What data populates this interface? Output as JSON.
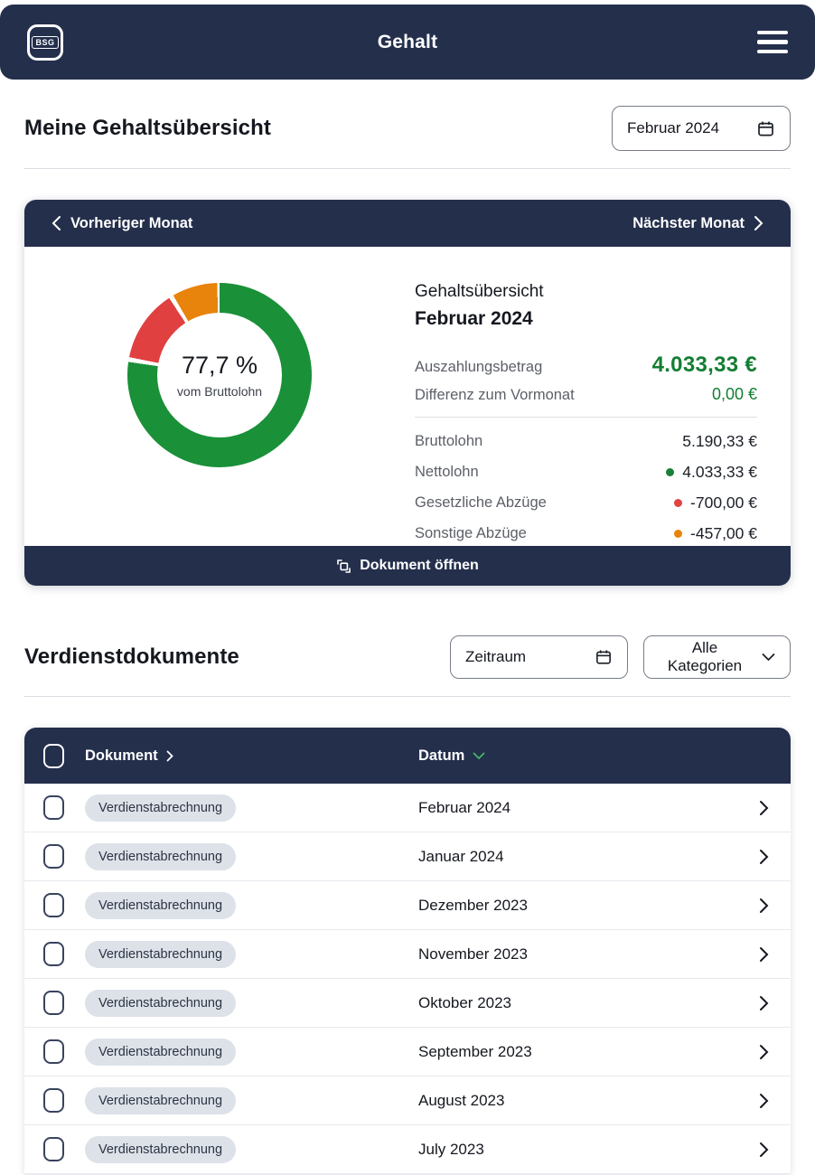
{
  "app": {
    "title": "Gehalt",
    "logo_text": "BSG"
  },
  "overview": {
    "heading": "Meine Gehaltsübersicht",
    "month_picker": {
      "value": "Februar 2024"
    },
    "card": {
      "prev_label": "Vorheriger Monat",
      "next_label": "Nächster Monat",
      "panel_title": "Gehaltsübersicht",
      "panel_month": "Februar 2024",
      "payout_label": "Auszahlungsbetrag",
      "payout_value": "4.033,33 €",
      "diff_label": "Differenz zum Vormonat",
      "diff_value": "0,00 €",
      "breakdown": [
        {
          "label": "Bruttolohn",
          "value": "5.190,33 €",
          "dot": null
        },
        {
          "label": "Nettolohn",
          "value": "4.033,33 €",
          "dot": "#188038"
        },
        {
          "label": "Gesetzliche Abzüge",
          "value": "-700,00 €",
          "dot": "#E14444"
        },
        {
          "label": "Sonstige Abzüge",
          "value": "-457,00 €",
          "dot": "#E8830C"
        }
      ],
      "open_document_label": "Dokument öffnen"
    }
  },
  "chart_data": {
    "type": "pie",
    "title": "Gehaltsübersicht Februar 2024",
    "center_label": "77,7 %",
    "center_sublabel": "vom Bruttolohn",
    "legend_position": "right-list",
    "segments": [
      {
        "name": "Nettolohn",
        "percent": 77.7,
        "value_eur": 4033.33,
        "color": "#1A9038"
      },
      {
        "name": "Gesetzliche Abzüge",
        "percent": 13.5,
        "value_eur": -700.0,
        "color": "#E04040"
      },
      {
        "name": "Sonstige Abzüge",
        "percent": 8.8,
        "value_eur": -457.0,
        "color": "#E8830C"
      }
    ]
  },
  "documents": {
    "heading": "Verdienstdokumente",
    "filters": {
      "period_label": "Zeitraum",
      "category_label": "Alle Kategorien"
    },
    "table": {
      "columns": [
        {
          "label": "Dokument"
        },
        {
          "label": "Datum"
        }
      ],
      "rows": [
        {
          "badge": "Verdienstabrechnung",
          "date": "Februar 2024"
        },
        {
          "badge": "Verdienstabrechnung",
          "date": "Januar 2024"
        },
        {
          "badge": "Verdienstabrechnung",
          "date": "Dezember 2023"
        },
        {
          "badge": "Verdienstabrechnung",
          "date": "November 2023"
        },
        {
          "badge": "Verdienstabrechnung",
          "date": "Oktober 2023"
        },
        {
          "badge": "Verdienstabrechnung",
          "date": "September 2023"
        },
        {
          "badge": "Verdienstabrechnung",
          "date": "August 2023"
        },
        {
          "badge": "Verdienstabrechnung",
          "date": "July 2023"
        }
      ]
    }
  },
  "icons": {
    "menu": "menu-icon",
    "calendar": "calendar-icon",
    "chevron_left": "chevron-left-icon",
    "chevron_right": "chevron-right-icon",
    "chevron_down": "chevron-down-icon",
    "open_document": "open-document-icon"
  },
  "colors": {
    "navy": "#242F4C",
    "green_text": "#137E33",
    "sort_chevron_green": "#45B864",
    "badge_bg": "#DDE2E9"
  }
}
